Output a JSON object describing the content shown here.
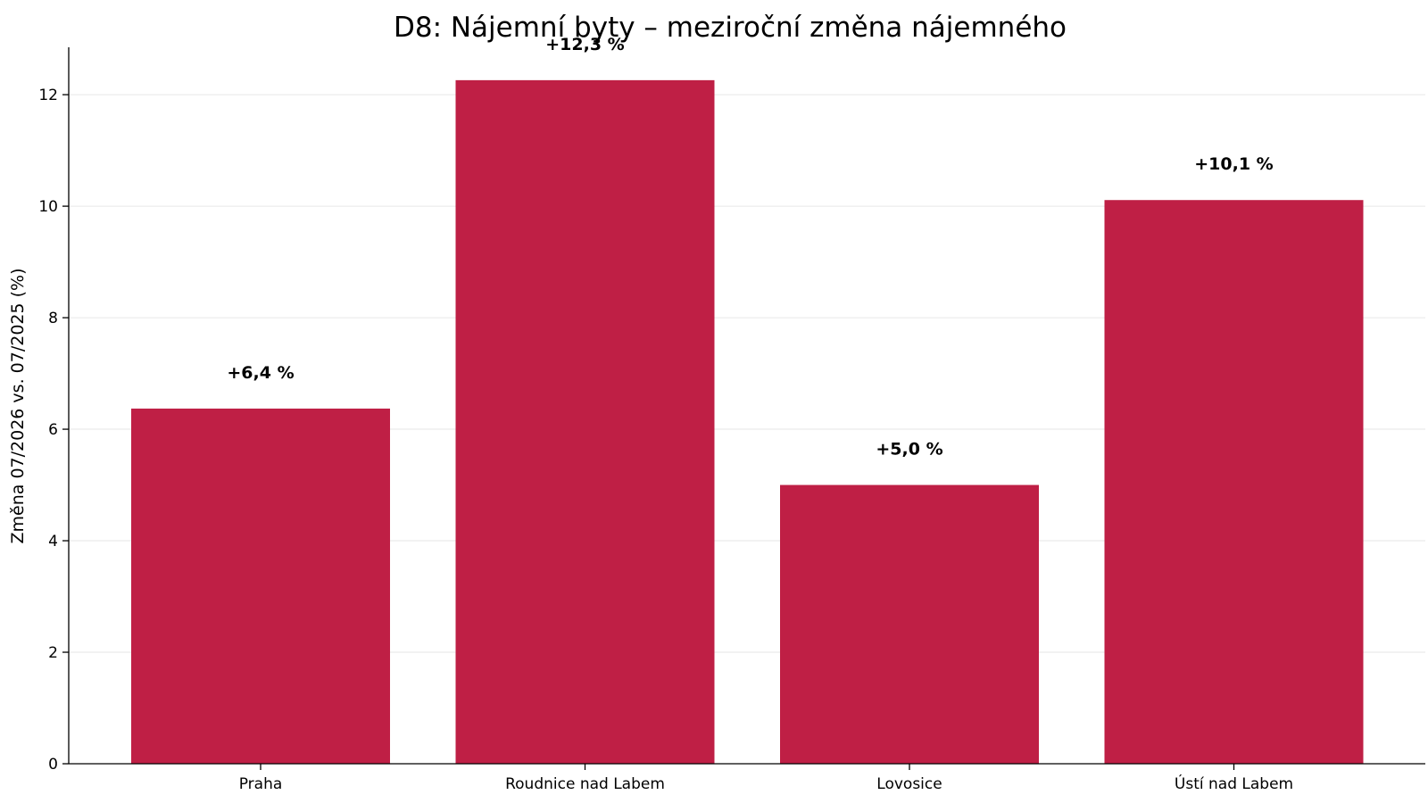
{
  "chart_data": {
    "type": "bar",
    "title": "D8: Nájemní byty – meziroční změna nájemného",
    "xlabel": "",
    "ylabel": "Změna 07/2026 vs. 07/2025 (%)",
    "categories": [
      "Praha",
      "Roudnice nad Labem",
      "Lovosice",
      "Ústí nad Labem"
    ],
    "values": [
      6.37,
      12.26,
      5.0,
      10.11
    ],
    "data_labels": [
      "+6,4 %",
      "+12,3 %",
      "+5,0 %",
      "+10,1 %"
    ],
    "ylim": [
      0,
      12.85
    ],
    "yticks": [
      0,
      2,
      4,
      6,
      8,
      10,
      12
    ],
    "grid": "horizontal",
    "bar_color": "#bf1f45"
  }
}
